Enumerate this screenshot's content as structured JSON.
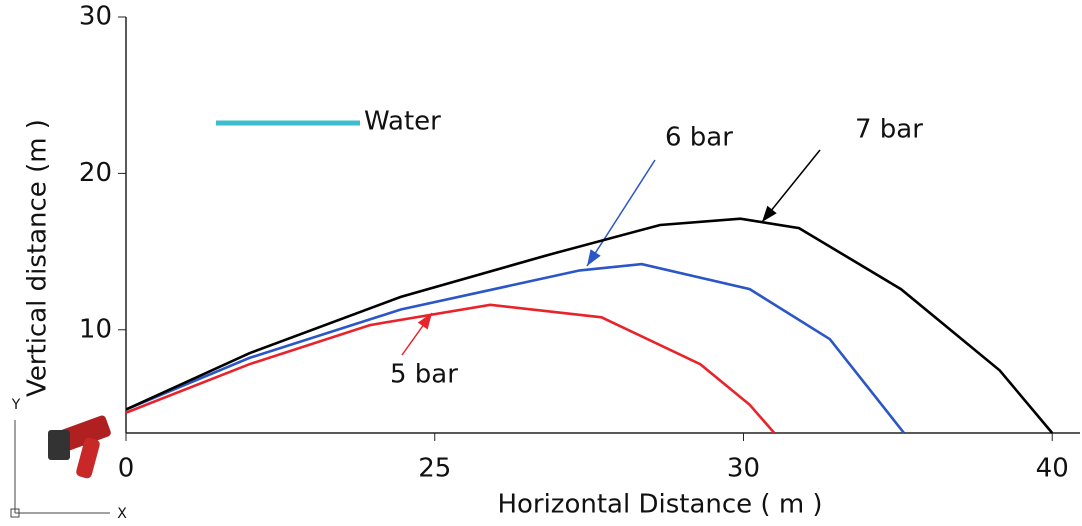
{
  "chart_data": {
    "type": "line",
    "xlabel": "Horizontal Distance ( m )",
    "ylabel": "Vertical distance (m )",
    "xlim": [
      0,
      30.9
    ],
    "ylim": [
      3.4,
      30
    ],
    "xticks": [
      {
        "value": 0,
        "label": "0"
      },
      {
        "value": 10,
        "label": "25"
      },
      {
        "value": 20,
        "label": "30"
      },
      {
        "value": 30,
        "label": "40"
      }
    ],
    "yticks": [
      10,
      20,
      30
    ],
    "legend": {
      "label": "Water",
      "color": "#3cbccc"
    },
    "axis_glyph": {
      "y": "Y",
      "x": "X"
    },
    "series": [
      {
        "name": "5 bar",
        "color": "#e8232a",
        "x": [
          0,
          4.0,
          7.9,
          11.8,
          15.4,
          18.6,
          20.2,
          21.0
        ],
        "values": [
          4.7,
          7.8,
          10.3,
          11.6,
          10.8,
          7.8,
          5.2,
          3.4
        ]
      },
      {
        "name": "6 bar",
        "color": "#2a56c6",
        "x": [
          0,
          4.0,
          8.9,
          14.7,
          16.7,
          20.2,
          22.8,
          25.2
        ],
        "values": [
          4.9,
          8.2,
          11.3,
          13.8,
          14.2,
          12.6,
          9.4,
          3.4
        ]
      },
      {
        "name": "7 bar",
        "color": "#000000",
        "x": [
          0,
          4.0,
          8.9,
          13.7,
          17.3,
          19.9,
          21.8,
          25.1,
          28.3,
          30.0
        ],
        "values": [
          4.9,
          8.5,
          12.1,
          14.8,
          16.7,
          17.1,
          16.5,
          12.6,
          7.4,
          3.4
        ]
      }
    ]
  }
}
